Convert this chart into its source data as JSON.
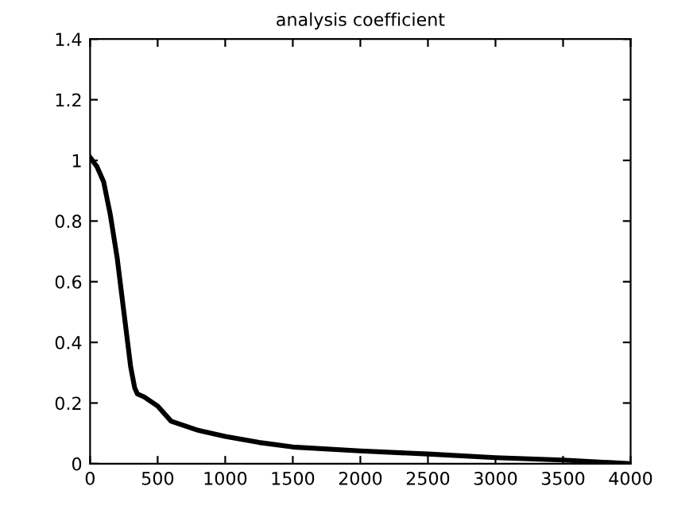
{
  "chart_data": {
    "type": "line",
    "title": "analysis coefficient",
    "x": [
      0,
      50,
      100,
      150,
      200,
      250,
      300,
      330,
      350,
      400,
      500,
      600,
      700,
      800,
      1000,
      1250,
      1500,
      2000,
      2500,
      3000,
      3500,
      4000
    ],
    "series": [
      {
        "color": "#000000",
        "values": [
          1.01,
          0.98,
          0.93,
          0.82,
          0.68,
          0.5,
          0.32,
          0.25,
          0.23,
          0.22,
          0.19,
          0.14,
          0.125,
          0.11,
          0.09,
          0.07,
          0.055,
          0.042,
          0.032,
          0.02,
          0.012,
          0.0
        ]
      }
    ],
    "xlim": [
      0,
      4000
    ],
    "xticks": [
      0,
      500,
      1000,
      1500,
      2000,
      2500,
      3000,
      3500,
      4000
    ],
    "ylim": [
      0,
      1.4
    ],
    "yticks": [
      0,
      0.2,
      0.4,
      0.6,
      0.8,
      1,
      1.2,
      1.4
    ],
    "grid": false,
    "marker": "none",
    "line_style": "solid"
  }
}
